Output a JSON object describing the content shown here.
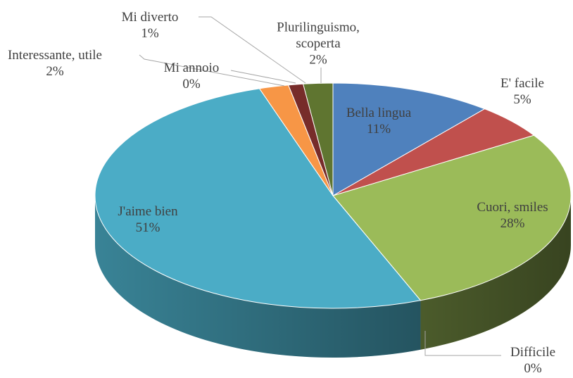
{
  "chart_data": {
    "type": "pie",
    "three_d": true,
    "categories": [
      "Bella lingua",
      "E' facile",
      "Cuori, smiles",
      "Difficile",
      "J'aime bien",
      "Interessante, utile",
      "Mi annoio",
      "Mi diverto",
      "Plurilinguismo, scoperta"
    ],
    "values": [
      11,
      5,
      28,
      0,
      51,
      2,
      0,
      1,
      2
    ],
    "value_labels": [
      "11%",
      "5%",
      "28%",
      "0%",
      "51%",
      "2%",
      "0%",
      "1%",
      "2%"
    ],
    "colors": [
      "#4f81bd",
      "#c0504d",
      "#9bbb59",
      "#8064a2",
      "#4bacc6",
      "#f79646",
      "#2c4d75",
      "#772c2a",
      "#5f7530"
    ]
  }
}
